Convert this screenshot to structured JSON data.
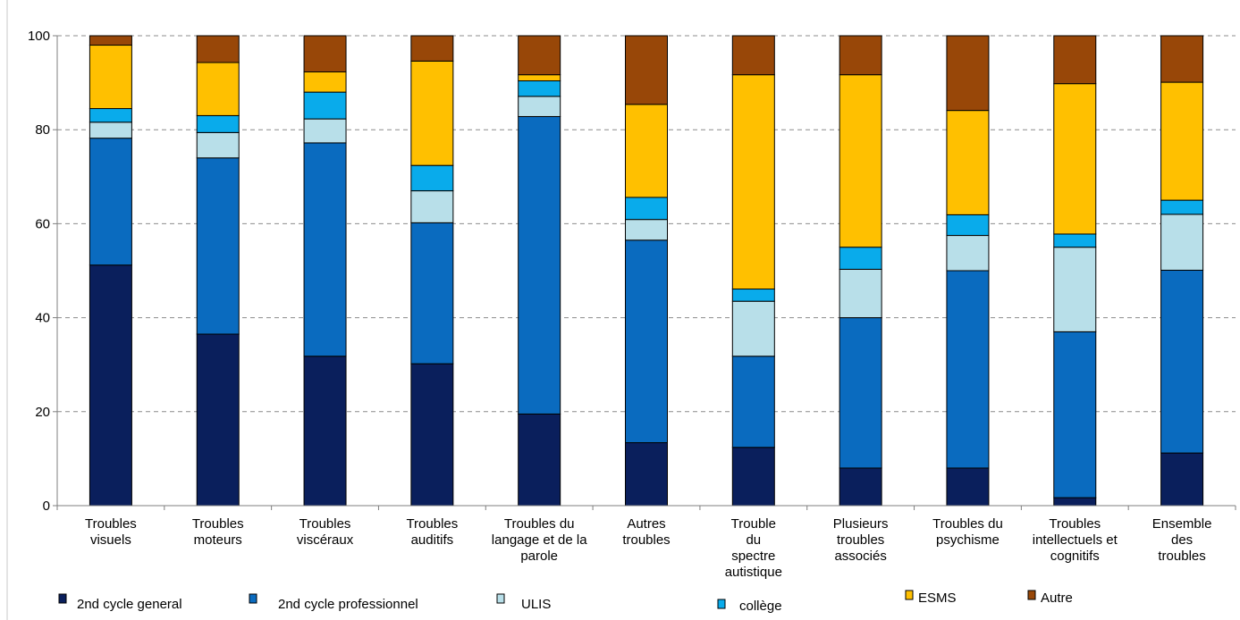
{
  "chart_data": {
    "type": "bar",
    "stacked": true,
    "title": "",
    "xlabel": "",
    "ylabel": "",
    "ylim": [
      0,
      100
    ],
    "yticks": [
      0,
      20,
      40,
      60,
      80,
      100
    ],
    "grid": "horizontal dashed",
    "legend_position": "bottom",
    "categories": [
      [
        "Troubles",
        "visuels"
      ],
      [
        "Troubles",
        "moteurs"
      ],
      [
        "Troubles",
        "viscéraux"
      ],
      [
        "Troubles",
        "auditifs"
      ],
      [
        "Troubles du",
        "langage et de la",
        "parole"
      ],
      [
        "Autres",
        "troubles"
      ],
      [
        "Trouble",
        "du",
        "spectre",
        "autistique"
      ],
      [
        "Plusieurs",
        "troubles",
        "associés"
      ],
      [
        "Troubles du",
        "psychisme"
      ],
      [
        "Troubles",
        "intellectuels  et",
        "cognitifs"
      ],
      [
        "Ensemble",
        "des",
        "troubles"
      ]
    ],
    "series": [
      {
        "name": "2nd cycle general",
        "color": "#0a1f5c",
        "values": [
          51.2,
          36.5,
          31.8,
          30.2,
          19.5,
          13.4,
          12.4,
          8.0,
          8.0,
          1.7,
          11.2
        ]
      },
      {
        "name": "2nd cycle professionnel",
        "color": "#0a6bbf",
        "values": [
          27.0,
          37.5,
          45.4,
          30.0,
          63.3,
          43.1,
          19.4,
          32.0,
          42.0,
          35.3,
          38.9
        ]
      },
      {
        "name": "ULIS",
        "color": "#b8dfe9",
        "values": [
          3.4,
          5.4,
          5.1,
          6.8,
          4.3,
          4.4,
          11.7,
          10.3,
          7.5,
          18.0,
          11.9
        ]
      },
      {
        "name": "collège",
        "color": "#09abeb",
        "values": [
          2.9,
          3.6,
          5.7,
          5.4,
          3.3,
          4.7,
          2.6,
          4.7,
          4.4,
          2.8,
          3.0
        ]
      },
      {
        "name": "ESMS",
        "color": "#ffc000",
        "values": [
          13.5,
          11.3,
          4.3,
          22.2,
          1.3,
          19.8,
          45.6,
          36.7,
          22.2,
          32.0,
          25.1
        ]
      },
      {
        "name": "Autre",
        "color": "#984708",
        "values": [
          2.0,
          5.7,
          7.7,
          5.4,
          8.3,
          14.6,
          8.3,
          8.3,
          15.9,
          10.2,
          9.9
        ]
      }
    ]
  }
}
